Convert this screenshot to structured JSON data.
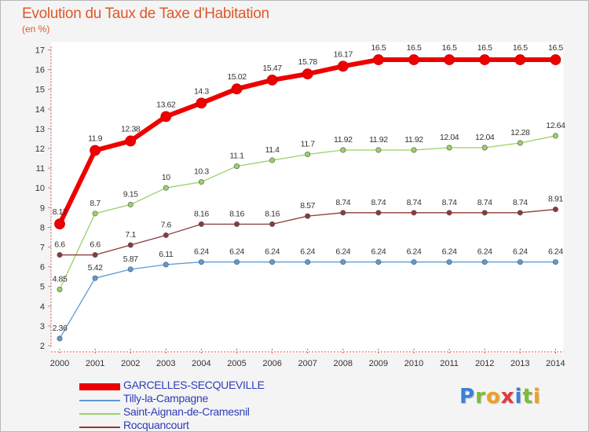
{
  "chart_data": {
    "type": "line",
    "title": "Evolution du Taux de Taxe d'Habitation",
    "subtitle": "(en %)",
    "xlabel": "",
    "ylabel": "",
    "categories": [
      "2000",
      "2001",
      "2002",
      "2003",
      "2004",
      "2005",
      "2006",
      "2007",
      "2008",
      "2009",
      "2010",
      "2011",
      "2012",
      "2013",
      "2014"
    ],
    "ylim": [
      2,
      17
    ],
    "yticks": [
      "2",
      "3",
      "4",
      "5",
      "6",
      "7",
      "8",
      "9",
      "10",
      "11",
      "12",
      "13",
      "14",
      "15",
      "16",
      "17"
    ],
    "grid": false,
    "series": [
      {
        "name": "GARCELLES-SECQUEVILLE",
        "color": "#ee0000",
        "values": [
          8.17,
          11.9,
          12.38,
          13.62,
          14.3,
          15.02,
          15.47,
          15.78,
          16.17,
          16.5,
          16.5,
          16.5,
          16.5,
          16.5,
          16.5
        ],
        "labels": [
          "8.17",
          "11.9",
          "12.38",
          "13.62",
          "14.3",
          "15.02",
          "15.47",
          "15.78",
          "16.17",
          "16.5",
          "16.5",
          "16.5",
          "16.5",
          "16.5",
          "16.5"
        ]
      },
      {
        "name": "Tilly-la-Campagne",
        "color": "#5b9bd5",
        "values": [
          2.36,
          5.42,
          5.87,
          6.11,
          6.24,
          6.24,
          6.24,
          6.24,
          6.24,
          6.24,
          6.24,
          6.24,
          6.24,
          6.24,
          6.24
        ],
        "labels": [
          "2.36",
          "5.42",
          "5.87",
          "6.11",
          "6.24",
          "6.24",
          "6.24",
          "6.24",
          "6.24",
          "6.24",
          "6.24",
          "6.24",
          "6.24",
          "6.24",
          "6.24"
        ]
      },
      {
        "name": "Saint-Aignan-de-Cramesnil",
        "color": "#99d266",
        "values": [
          4.85,
          8.7,
          9.15,
          10,
          10.3,
          11.1,
          11.4,
          11.7,
          11.92,
          11.92,
          11.92,
          12.04,
          12.04,
          12.28,
          12.64
        ],
        "labels": [
          "4.85",
          "8.7",
          "9.15",
          "10",
          "10.3",
          "11.1",
          "11.4",
          "11.7",
          "11.92",
          "11.92",
          "11.92",
          "12.04",
          "12.04",
          "12.28",
          "12.64"
        ]
      },
      {
        "name": "Rocquancourt",
        "color": "#8b3a3a",
        "values": [
          6.6,
          6.6,
          7.1,
          7.6,
          8.16,
          8.16,
          8.16,
          8.57,
          8.74,
          8.74,
          8.74,
          8.74,
          8.74,
          8.74,
          8.91
        ],
        "labels": [
          "6.6",
          "6.6",
          "7.1",
          "7.6",
          "8.16",
          "8.16",
          "8.16",
          "8.57",
          "8.74",
          "8.74",
          "8.74",
          "8.74",
          "8.74",
          "8.74",
          "8.91"
        ]
      }
    ],
    "legend_position": "bottom-left"
  },
  "logo": {
    "letters": [
      "P",
      "r",
      "o",
      "x",
      "i",
      "t",
      "i"
    ],
    "colors": [
      "#3a7fd5",
      "#7cbb3c",
      "#f0a020",
      "#e03a3a",
      "#3a7fd5",
      "#7cbb3c",
      "#f0a020"
    ]
  }
}
